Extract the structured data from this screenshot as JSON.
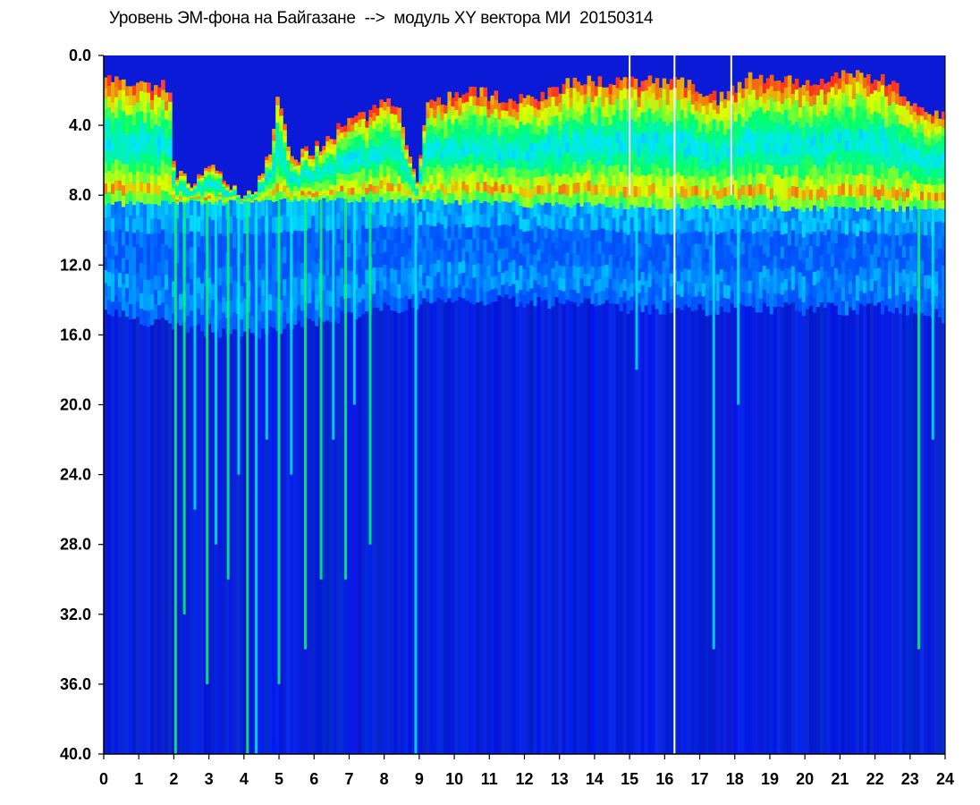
{
  "chart_data": {
    "type": "heatmap",
    "title": "Уровень ЭМ-фона на Байгазане  -->  модуль XY вектора МИ  20150314",
    "x_ticks": [
      "0",
      "1",
      "2",
      "3",
      "4",
      "5",
      "6",
      "7",
      "8",
      "9",
      "10",
      "11",
      "12",
      "13",
      "14",
      "15",
      "16",
      "17",
      "18",
      "19",
      "20",
      "21",
      "22",
      "23",
      "24"
    ],
    "y_ticks": [
      "0.0",
      "4.0",
      "8.0",
      "12.0",
      "16.0",
      "20.0",
      "24.0",
      "28.0",
      "32.0",
      "36.0",
      "40.0"
    ],
    "xlim": [
      0,
      24
    ],
    "ylim": [
      0,
      40
    ],
    "y_inverted": true,
    "colormap": [
      "#ffffff",
      "#ff2020",
      "#ffff00",
      "#00ff60",
      "#00ffff",
      "#0030ff",
      "#0010c0"
    ],
    "background_color": "#0a1ad6",
    "band_top": [
      [
        0,
        1.2
      ],
      [
        0.5,
        1.5
      ],
      [
        1,
        1.6
      ],
      [
        1.9,
        1.8
      ],
      [
        2.0,
        6.5
      ],
      [
        2.5,
        7.5
      ],
      [
        3.0,
        6.0
      ],
      [
        3.5,
        7.0
      ],
      [
        4.0,
        8.3
      ],
      [
        4.5,
        7.0
      ],
      [
        4.8,
        5.0
      ],
      [
        5.0,
        2.0
      ],
      [
        5.3,
        6.0
      ],
      [
        5.8,
        5.5
      ],
      [
        6.3,
        5.0
      ],
      [
        6.8,
        4.0
      ],
      [
        7.5,
        3.5
      ],
      [
        8.0,
        2.5
      ],
      [
        8.5,
        3.5
      ],
      [
        8.9,
        7.5
      ],
      [
        9.2,
        3.0
      ],
      [
        9.8,
        2.5
      ],
      [
        10.5,
        2.0
      ],
      [
        11.5,
        2.5
      ],
      [
        12.5,
        2.2
      ],
      [
        13.5,
        1.5
      ],
      [
        14.5,
        1.6
      ],
      [
        15.5,
        1.5
      ],
      [
        16.5,
        1.6
      ],
      [
        17.0,
        2.0
      ],
      [
        17.5,
        2.5
      ],
      [
        18.0,
        1.8
      ],
      [
        18.5,
        1.2
      ],
      [
        19.5,
        1.5
      ],
      [
        20.5,
        1.3
      ],
      [
        21.5,
        1.2
      ],
      [
        22.5,
        1.5
      ],
      [
        23.0,
        3.0
      ],
      [
        23.5,
        3.0
      ],
      [
        24,
        3.5
      ]
    ],
    "band_bottom": [
      [
        0,
        8.5
      ],
      [
        8,
        8.2
      ],
      [
        12,
        8.5
      ],
      [
        18,
        8.7
      ],
      [
        24,
        8.8
      ]
    ],
    "secondary_band_depth": [
      [
        0,
        14.5
      ],
      [
        2,
        15.5
      ],
      [
        4,
        16.0
      ],
      [
        8,
        14.5
      ],
      [
        9.3,
        14.0
      ],
      [
        12,
        14.0
      ],
      [
        16,
        14.5
      ],
      [
        20,
        14.5
      ],
      [
        23,
        14.5
      ],
      [
        24,
        15.0
      ]
    ],
    "vertical_streaks": [
      {
        "x": 2.05,
        "depth": 40,
        "level": "green"
      },
      {
        "x": 2.3,
        "depth": 32,
        "level": "green"
      },
      {
        "x": 2.6,
        "depth": 26,
        "level": "cyan"
      },
      {
        "x": 2.95,
        "depth": 36,
        "level": "green"
      },
      {
        "x": 3.2,
        "depth": 28,
        "level": "cyan"
      },
      {
        "x": 3.55,
        "depth": 30,
        "level": "green"
      },
      {
        "x": 3.85,
        "depth": 24,
        "level": "cyan"
      },
      {
        "x": 4.1,
        "depth": 40,
        "level": "green"
      },
      {
        "x": 4.35,
        "depth": 40,
        "level": "cyan"
      },
      {
        "x": 4.65,
        "depth": 22,
        "level": "cyan"
      },
      {
        "x": 5.0,
        "depth": 36,
        "level": "green"
      },
      {
        "x": 5.35,
        "depth": 24,
        "level": "cyan"
      },
      {
        "x": 5.75,
        "depth": 34,
        "level": "green"
      },
      {
        "x": 6.2,
        "depth": 30,
        "level": "green"
      },
      {
        "x": 6.55,
        "depth": 22,
        "level": "cyan"
      },
      {
        "x": 6.9,
        "depth": 30,
        "level": "green"
      },
      {
        "x": 7.15,
        "depth": 20,
        "level": "cyan"
      },
      {
        "x": 7.6,
        "depth": 28,
        "level": "green"
      },
      {
        "x": 8.9,
        "depth": 40,
        "level": "cyan"
      },
      {
        "x": 15.2,
        "depth": 18,
        "level": "cyan"
      },
      {
        "x": 17.4,
        "depth": 34,
        "level": "cyan"
      },
      {
        "x": 18.1,
        "depth": 20,
        "level": "cyan"
      },
      {
        "x": 23.25,
        "depth": 34,
        "level": "green"
      },
      {
        "x": 23.65,
        "depth": 22,
        "level": "cyan"
      }
    ],
    "white_gaps": [
      {
        "x": 16.28,
        "from": 0,
        "to": 40
      },
      {
        "x": 15.0,
        "from": 0,
        "to": 8
      },
      {
        "x": 17.9,
        "from": 0,
        "to": 8
      }
    ]
  }
}
